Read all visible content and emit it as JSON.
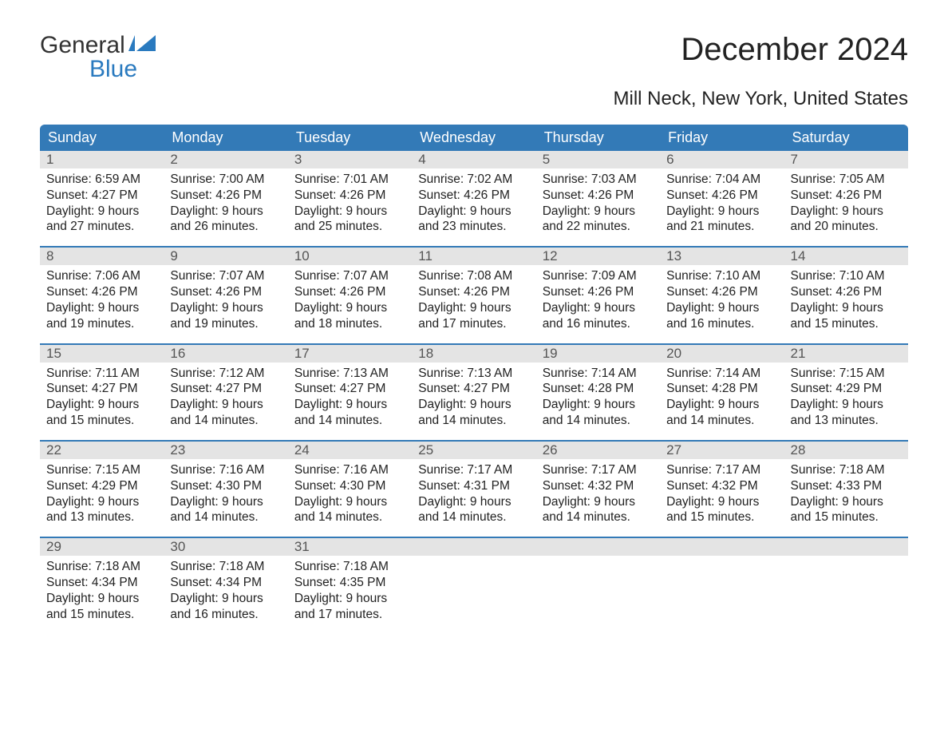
{
  "brand": {
    "top": "General",
    "bottom": "Blue",
    "icon_color": "#2a7abf"
  },
  "title": "December 2024",
  "subtitle": "Mill Neck, New York, United States",
  "colors": {
    "header_bg": "#337ab7",
    "header_text": "#ffffff",
    "band_bg": "#e4e4e4",
    "band_text": "#555555",
    "body_text": "#222222",
    "rule": "#337ab7"
  },
  "day_headers": [
    "Sunday",
    "Monday",
    "Tuesday",
    "Wednesday",
    "Thursday",
    "Friday",
    "Saturday"
  ],
  "weeks": [
    [
      {
        "n": "1",
        "sunrise": "Sunrise: 6:59 AM",
        "sunset": "Sunset: 4:27 PM",
        "d1": "Daylight: 9 hours",
        "d2": "and 27 minutes."
      },
      {
        "n": "2",
        "sunrise": "Sunrise: 7:00 AM",
        "sunset": "Sunset: 4:26 PM",
        "d1": "Daylight: 9 hours",
        "d2": "and 26 minutes."
      },
      {
        "n": "3",
        "sunrise": "Sunrise: 7:01 AM",
        "sunset": "Sunset: 4:26 PM",
        "d1": "Daylight: 9 hours",
        "d2": "and 25 minutes."
      },
      {
        "n": "4",
        "sunrise": "Sunrise: 7:02 AM",
        "sunset": "Sunset: 4:26 PM",
        "d1": "Daylight: 9 hours",
        "d2": "and 23 minutes."
      },
      {
        "n": "5",
        "sunrise": "Sunrise: 7:03 AM",
        "sunset": "Sunset: 4:26 PM",
        "d1": "Daylight: 9 hours",
        "d2": "and 22 minutes."
      },
      {
        "n": "6",
        "sunrise": "Sunrise: 7:04 AM",
        "sunset": "Sunset: 4:26 PM",
        "d1": "Daylight: 9 hours",
        "d2": "and 21 minutes."
      },
      {
        "n": "7",
        "sunrise": "Sunrise: 7:05 AM",
        "sunset": "Sunset: 4:26 PM",
        "d1": "Daylight: 9 hours",
        "d2": "and 20 minutes."
      }
    ],
    [
      {
        "n": "8",
        "sunrise": "Sunrise: 7:06 AM",
        "sunset": "Sunset: 4:26 PM",
        "d1": "Daylight: 9 hours",
        "d2": "and 19 minutes."
      },
      {
        "n": "9",
        "sunrise": "Sunrise: 7:07 AM",
        "sunset": "Sunset: 4:26 PM",
        "d1": "Daylight: 9 hours",
        "d2": "and 19 minutes."
      },
      {
        "n": "10",
        "sunrise": "Sunrise: 7:07 AM",
        "sunset": "Sunset: 4:26 PM",
        "d1": "Daylight: 9 hours",
        "d2": "and 18 minutes."
      },
      {
        "n": "11",
        "sunrise": "Sunrise: 7:08 AM",
        "sunset": "Sunset: 4:26 PM",
        "d1": "Daylight: 9 hours",
        "d2": "and 17 minutes."
      },
      {
        "n": "12",
        "sunrise": "Sunrise: 7:09 AM",
        "sunset": "Sunset: 4:26 PM",
        "d1": "Daylight: 9 hours",
        "d2": "and 16 minutes."
      },
      {
        "n": "13",
        "sunrise": "Sunrise: 7:10 AM",
        "sunset": "Sunset: 4:26 PM",
        "d1": "Daylight: 9 hours",
        "d2": "and 16 minutes."
      },
      {
        "n": "14",
        "sunrise": "Sunrise: 7:10 AM",
        "sunset": "Sunset: 4:26 PM",
        "d1": "Daylight: 9 hours",
        "d2": "and 15 minutes."
      }
    ],
    [
      {
        "n": "15",
        "sunrise": "Sunrise: 7:11 AM",
        "sunset": "Sunset: 4:27 PM",
        "d1": "Daylight: 9 hours",
        "d2": "and 15 minutes."
      },
      {
        "n": "16",
        "sunrise": "Sunrise: 7:12 AM",
        "sunset": "Sunset: 4:27 PM",
        "d1": "Daylight: 9 hours",
        "d2": "and 14 minutes."
      },
      {
        "n": "17",
        "sunrise": "Sunrise: 7:13 AM",
        "sunset": "Sunset: 4:27 PM",
        "d1": "Daylight: 9 hours",
        "d2": "and 14 minutes."
      },
      {
        "n": "18",
        "sunrise": "Sunrise: 7:13 AM",
        "sunset": "Sunset: 4:27 PM",
        "d1": "Daylight: 9 hours",
        "d2": "and 14 minutes."
      },
      {
        "n": "19",
        "sunrise": "Sunrise: 7:14 AM",
        "sunset": "Sunset: 4:28 PM",
        "d1": "Daylight: 9 hours",
        "d2": "and 14 minutes."
      },
      {
        "n": "20",
        "sunrise": "Sunrise: 7:14 AM",
        "sunset": "Sunset: 4:28 PM",
        "d1": "Daylight: 9 hours",
        "d2": "and 14 minutes."
      },
      {
        "n": "21",
        "sunrise": "Sunrise: 7:15 AM",
        "sunset": "Sunset: 4:29 PM",
        "d1": "Daylight: 9 hours",
        "d2": "and 13 minutes."
      }
    ],
    [
      {
        "n": "22",
        "sunrise": "Sunrise: 7:15 AM",
        "sunset": "Sunset: 4:29 PM",
        "d1": "Daylight: 9 hours",
        "d2": "and 13 minutes."
      },
      {
        "n": "23",
        "sunrise": "Sunrise: 7:16 AM",
        "sunset": "Sunset: 4:30 PM",
        "d1": "Daylight: 9 hours",
        "d2": "and 14 minutes."
      },
      {
        "n": "24",
        "sunrise": "Sunrise: 7:16 AM",
        "sunset": "Sunset: 4:30 PM",
        "d1": "Daylight: 9 hours",
        "d2": "and 14 minutes."
      },
      {
        "n": "25",
        "sunrise": "Sunrise: 7:17 AM",
        "sunset": "Sunset: 4:31 PM",
        "d1": "Daylight: 9 hours",
        "d2": "and 14 minutes."
      },
      {
        "n": "26",
        "sunrise": "Sunrise: 7:17 AM",
        "sunset": "Sunset: 4:32 PM",
        "d1": "Daylight: 9 hours",
        "d2": "and 14 minutes."
      },
      {
        "n": "27",
        "sunrise": "Sunrise: 7:17 AM",
        "sunset": "Sunset: 4:32 PM",
        "d1": "Daylight: 9 hours",
        "d2": "and 15 minutes."
      },
      {
        "n": "28",
        "sunrise": "Sunrise: 7:18 AM",
        "sunset": "Sunset: 4:33 PM",
        "d1": "Daylight: 9 hours",
        "d2": "and 15 minutes."
      }
    ],
    [
      {
        "n": "29",
        "sunrise": "Sunrise: 7:18 AM",
        "sunset": "Sunset: 4:34 PM",
        "d1": "Daylight: 9 hours",
        "d2": "and 15 minutes."
      },
      {
        "n": "30",
        "sunrise": "Sunrise: 7:18 AM",
        "sunset": "Sunset: 4:34 PM",
        "d1": "Daylight: 9 hours",
        "d2": "and 16 minutes."
      },
      {
        "n": "31",
        "sunrise": "Sunrise: 7:18 AM",
        "sunset": "Sunset: 4:35 PM",
        "d1": "Daylight: 9 hours",
        "d2": "and 17 minutes."
      },
      {
        "empty": true
      },
      {
        "empty": true
      },
      {
        "empty": true
      },
      {
        "empty": true
      }
    ]
  ]
}
